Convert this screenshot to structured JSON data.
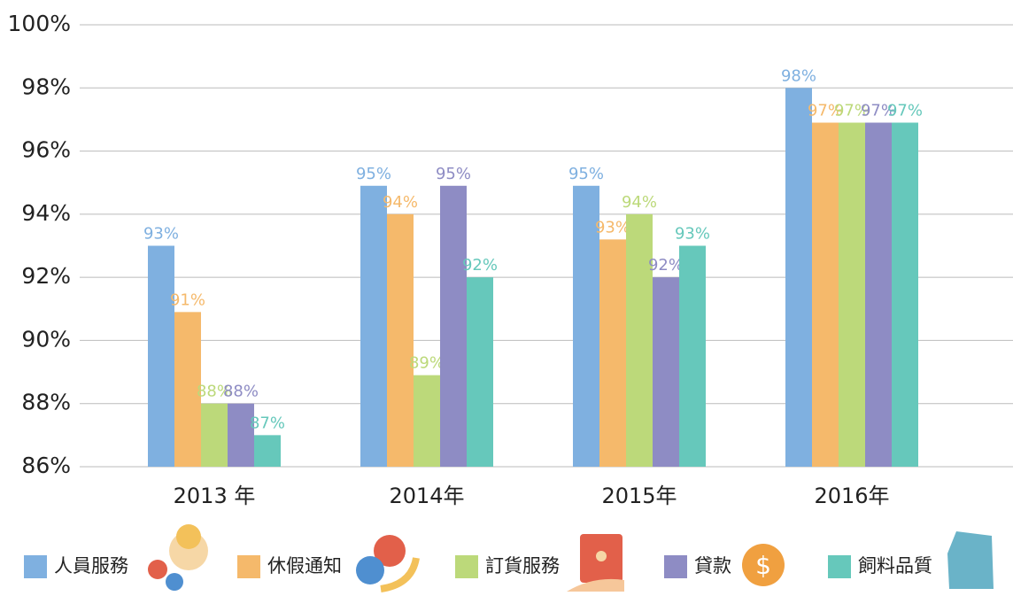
{
  "chart_data": {
    "type": "bar",
    "categories": [
      "2013 年",
      "2014年",
      "2015年",
      "2016年"
    ],
    "series": [
      {
        "name": "人員服務",
        "color": "#7fb0e0",
        "values": [
          93.0,
          94.9,
          94.9,
          98.0
        ],
        "value_labels": [
          "93%",
          "95%",
          "95%",
          "98%"
        ]
      },
      {
        "name": "休假通知",
        "color": "#f5b96b",
        "values": [
          90.9,
          94.0,
          93.2,
          96.9
        ],
        "value_labels": [
          "91%",
          "94%",
          "93%",
          "97%"
        ]
      },
      {
        "name": "訂貨服務",
        "color": "#bcd97a",
        "values": [
          88.0,
          88.9,
          94.0,
          96.9
        ],
        "value_labels": [
          "88%",
          "89%",
          "94%",
          "97%"
        ]
      },
      {
        "name": "貸款",
        "color": "#8e8cc4",
        "values": [
          88.0,
          94.9,
          92.0,
          96.9
        ],
        "value_labels": [
          "88%",
          "95%",
          "92%",
          "97%"
        ]
      },
      {
        "name": "飼料品質",
        "color": "#66c8bb",
        "values": [
          87.0,
          92.0,
          93.0,
          96.9
        ],
        "value_labels": [
          "87%",
          "92%",
          "93%",
          "97%"
        ]
      }
    ],
    "ylim": [
      86,
      100
    ],
    "yticks": [
      {
        "value": 86,
        "label": "86%"
      },
      {
        "value": 88,
        "label": "88%"
      },
      {
        "value": 90,
        "label": "90%"
      },
      {
        "value": 92,
        "label": "92%"
      },
      {
        "value": 94,
        "label": "94%"
      },
      {
        "value": 96,
        "label": "96%"
      },
      {
        "value": 98,
        "label": "98%"
      },
      {
        "value": 100,
        "label": "100%"
      }
    ],
    "grid": true,
    "legend": "bottom"
  }
}
